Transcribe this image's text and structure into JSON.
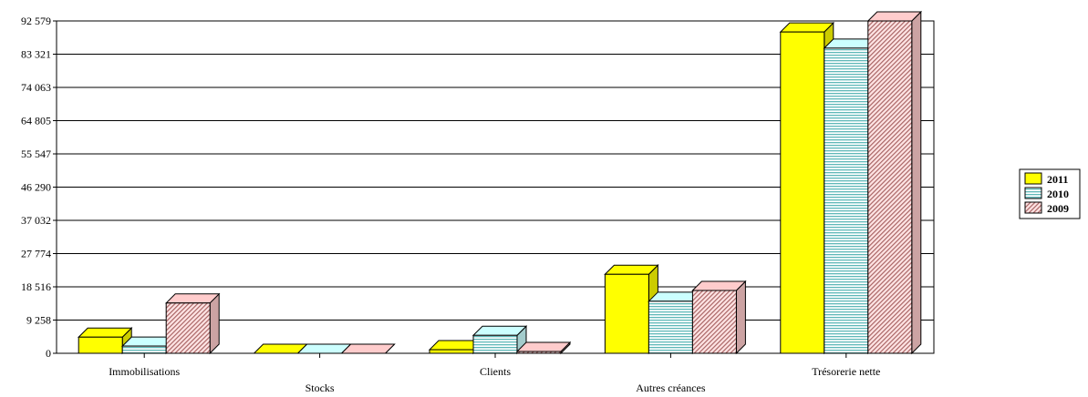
{
  "chart_data": {
    "type": "bar",
    "categories": [
      "Immobilisations",
      "Stocks",
      "Clients",
      "Autres créances",
      "Trésorerie nette"
    ],
    "series": [
      {
        "name": "2011",
        "values": [
          4500,
          0,
          1000,
          22000,
          89500
        ],
        "color": "#ffff00",
        "pattern": "solid"
      },
      {
        "name": "2010",
        "values": [
          2000,
          0,
          5000,
          14500,
          85000
        ],
        "color": "#ccffff",
        "pattern": "horizontal-stripes"
      },
      {
        "name": "2009",
        "values": [
          14000,
          0,
          500,
          17500,
          92579
        ],
        "color": "#ffcccc",
        "pattern": "diagonal-hatch"
      }
    ],
    "yticks": [
      "0",
      "9 258",
      "18 516",
      "27 774",
      "37 032",
      "46 290",
      "55 547",
      "64 805",
      "74 063",
      "83 321",
      "92 579"
    ],
    "ylim": [
      0,
      92579
    ],
    "grid": true,
    "legend_position": "right",
    "three_d": true,
    "title": "",
    "xlabel": "",
    "ylabel": ""
  }
}
